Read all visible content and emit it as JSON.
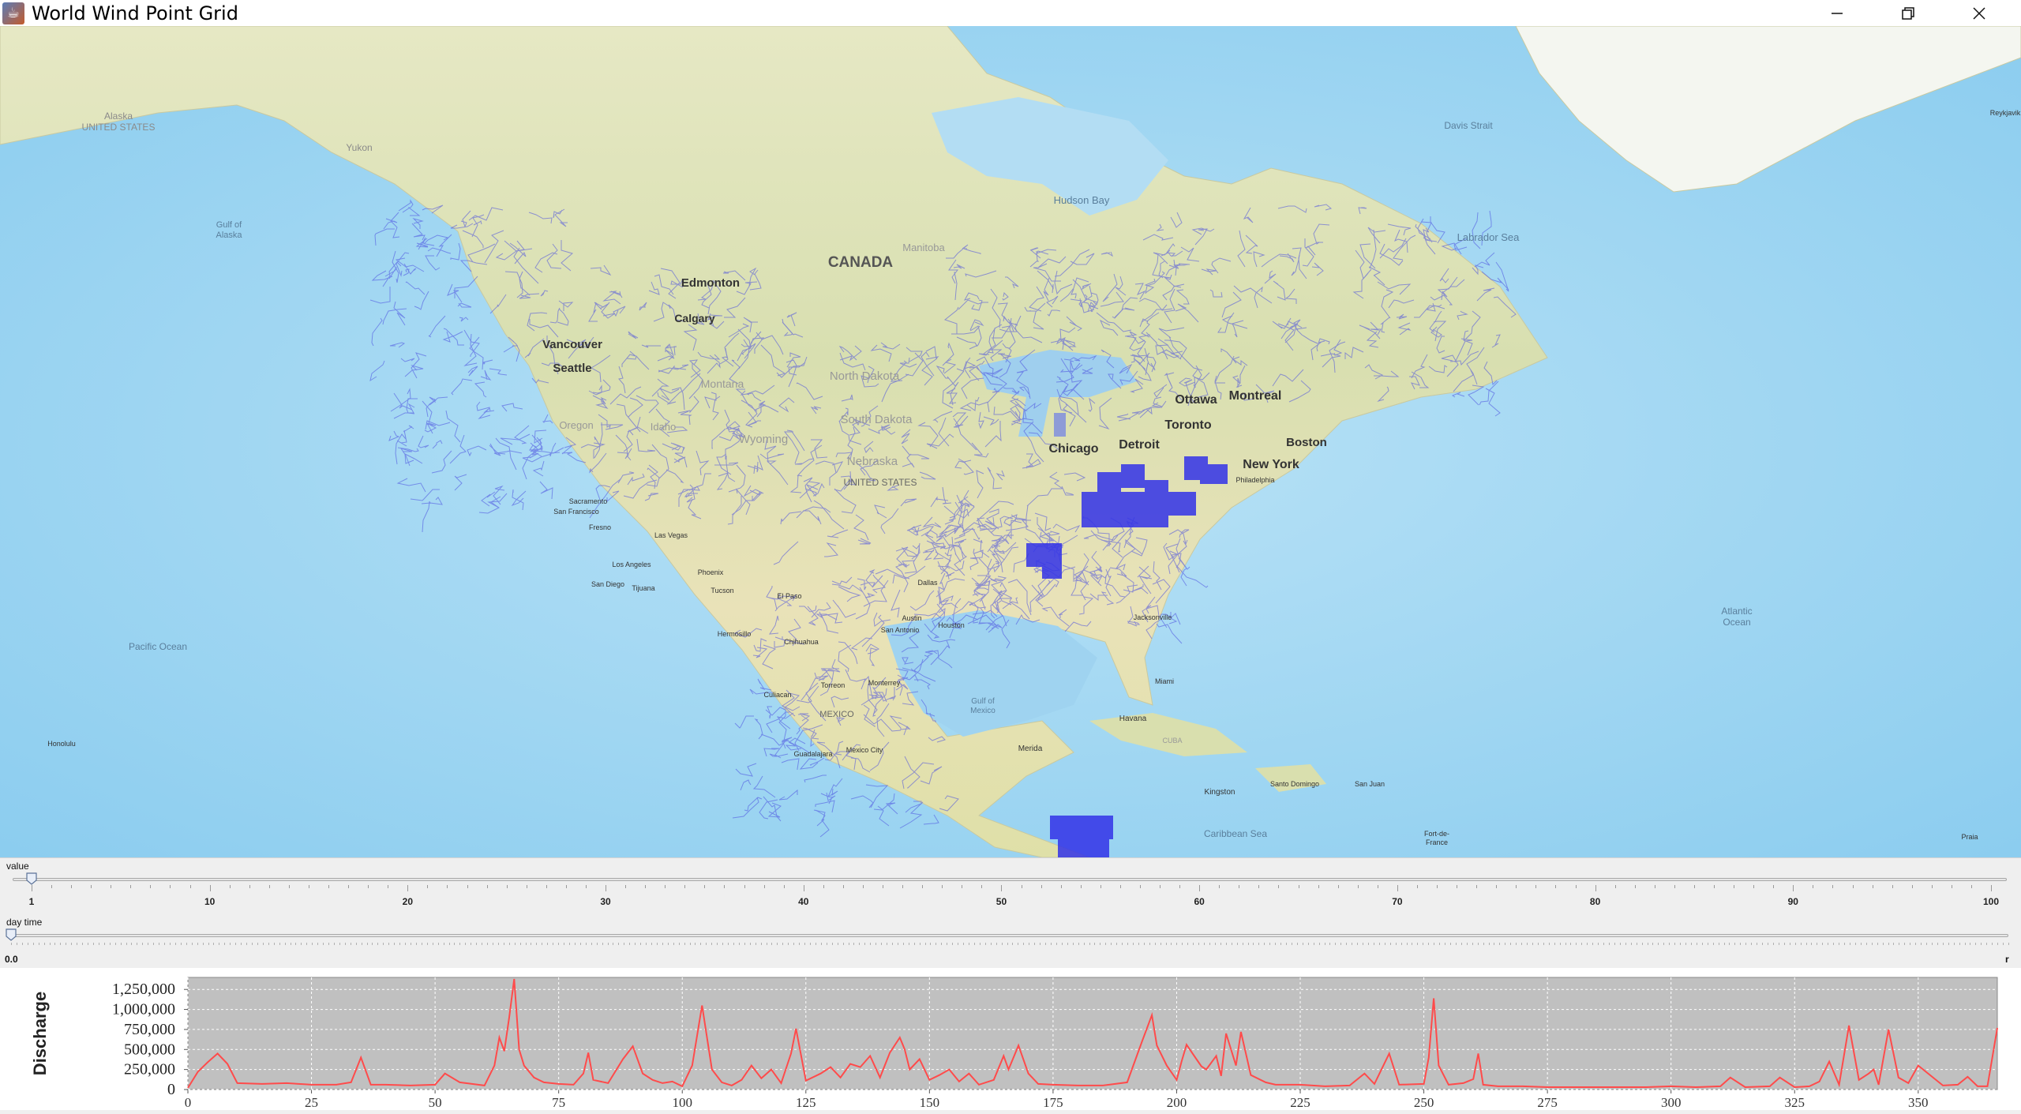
{
  "window": {
    "title": "World Wind Point Grid",
    "app_icon": "java-cup-icon",
    "buttons": [
      "minimize-icon",
      "restore-icon",
      "close-icon"
    ]
  },
  "map": {
    "labels": [
      {
        "id": "alaska",
        "text": "Alaska\nUNITED STATES"
      },
      {
        "id": "yukon",
        "text": "Yukon"
      },
      {
        "id": "gulf_alaska",
        "text": "Gulf of\nAlaska"
      },
      {
        "id": "hudson",
        "text": "Hudson Bay"
      },
      {
        "id": "davis",
        "text": "Davis Strait"
      },
      {
        "id": "labrador",
        "text": "Labrador Sea"
      },
      {
        "id": "canada",
        "text": "CANADA"
      },
      {
        "id": "manitoba",
        "text": "Manitoba"
      },
      {
        "id": "edmonton",
        "text": "Edmonton"
      },
      {
        "id": "calgary",
        "text": "Calgary"
      },
      {
        "id": "vancouver",
        "text": "Vancouver"
      },
      {
        "id": "seattle",
        "text": "Seattle"
      },
      {
        "id": "montana",
        "text": "Montana"
      },
      {
        "id": "ndakota",
        "text": "North Dakota"
      },
      {
        "id": "sdakota",
        "text": "South Dakota"
      },
      {
        "id": "oregon",
        "text": "Oregon"
      },
      {
        "id": "idaho",
        "text": "Idaho"
      },
      {
        "id": "wyoming",
        "text": "Wyoming"
      },
      {
        "id": "nebraska",
        "text": "Nebraska"
      },
      {
        "id": "us",
        "text": "UNITED STATES"
      },
      {
        "id": "ottawa",
        "text": "Ottawa"
      },
      {
        "id": "montreal",
        "text": "Montreal"
      },
      {
        "id": "toronto",
        "text": "Toronto"
      },
      {
        "id": "boston",
        "text": "Boston"
      },
      {
        "id": "chicago",
        "text": "Chicago"
      },
      {
        "id": "detroit",
        "text": "Detroit"
      },
      {
        "id": "newyork",
        "text": "New York"
      },
      {
        "id": "philadelphia",
        "text": "Philadelphia"
      },
      {
        "id": "sacramento",
        "text": "Sacramento"
      },
      {
        "id": "sanfrancisco",
        "text": "San Francisco"
      },
      {
        "id": "fresno",
        "text": "Fresno"
      },
      {
        "id": "lasvegas",
        "text": "Las Vegas"
      },
      {
        "id": "losangeles",
        "text": "Los Angeles"
      },
      {
        "id": "sandiego",
        "text": "San Diego"
      },
      {
        "id": "tijuana",
        "text": "Tijuana"
      },
      {
        "id": "phoenix",
        "text": "Phoenix"
      },
      {
        "id": "tucson",
        "text": "Tucson"
      },
      {
        "id": "elpaso",
        "text": "El Paso"
      },
      {
        "id": "dallas",
        "text": "Dallas"
      },
      {
        "id": "austin",
        "text": "Austin"
      },
      {
        "id": "sanantonio",
        "text": "San Antonio"
      },
      {
        "id": "houston",
        "text": "Houston"
      },
      {
        "id": "jacksonville",
        "text": "Jacksonville"
      },
      {
        "id": "miami",
        "text": "Miami"
      },
      {
        "id": "hermosillo",
        "text": "Hermosillo"
      },
      {
        "id": "chihuahua",
        "text": "Chihuahua"
      },
      {
        "id": "culiacan",
        "text": "Culiacan"
      },
      {
        "id": "torreon",
        "text": "Torreon"
      },
      {
        "id": "monterrey",
        "text": "Monterrey"
      },
      {
        "id": "mexico",
        "text": "MEXICO"
      },
      {
        "id": "mexicocity",
        "text": "Mexico City"
      },
      {
        "id": "guadalajara",
        "text": "Guadalajara"
      },
      {
        "id": "gulfmexico",
        "text": "Gulf of\nMexico"
      },
      {
        "id": "merida",
        "text": "Merida"
      },
      {
        "id": "havana",
        "text": "Havana"
      },
      {
        "id": "cuba",
        "text": "CUBA"
      },
      {
        "id": "kingston",
        "text": "Kingston"
      },
      {
        "id": "santodomingo",
        "text": "Santo Domingo"
      },
      {
        "id": "sanjuan",
        "text": "San Juan"
      },
      {
        "id": "caribbean",
        "text": "Caribbean Sea"
      },
      {
        "id": "pacific",
        "text": "Pacific Ocean"
      },
      {
        "id": "atlantic",
        "text": "Atlantic\nOcean"
      },
      {
        "id": "honolulu",
        "text": "Honolulu"
      },
      {
        "id": "praia",
        "text": "Praia"
      },
      {
        "id": "fortdefrance",
        "text": "Fort-de-\nFrance"
      },
      {
        "id": "reykjavik",
        "text": "Reykjavik"
      }
    ]
  },
  "value_slider": {
    "label": "value",
    "current": 1,
    "min": 1,
    "max": 100,
    "tick_labels": [
      "1",
      "10",
      "20",
      "30",
      "40",
      "50",
      "60",
      "70",
      "80",
      "90",
      "100"
    ]
  },
  "daytime_slider": {
    "label": "day time",
    "current": 0,
    "start_label": "0.0",
    "end_label": "r"
  },
  "chart_data": {
    "type": "line",
    "ylabel": "Discharge",
    "xlim": [
      0,
      366
    ],
    "ylim": [
      0,
      1400000
    ],
    "xticks": [
      0,
      25,
      50,
      75,
      100,
      125,
      150,
      175,
      200,
      225,
      250,
      275,
      300,
      325,
      350
    ],
    "yticks": [
      0,
      250000,
      500000,
      750000,
      1000000,
      1250000
    ],
    "ytick_labels": [
      "0",
      "250,000",
      "500,000",
      "750,000",
      "1,000,000",
      "1,250,000"
    ],
    "series_color": "#ff4b4b",
    "series": [
      {
        "x": [
          0,
          2,
          4,
          6,
          8,
          10,
          15,
          20,
          25,
          30,
          33,
          35,
          37,
          40,
          45,
          50,
          52,
          55,
          60,
          62,
          63,
          64,
          65,
          66,
          67,
          68,
          70,
          72,
          75,
          78,
          80,
          81,
          82,
          85,
          88,
          90,
          92,
          94,
          96,
          98,
          100,
          102,
          104,
          106,
          108,
          110,
          112,
          114,
          116,
          118,
          120,
          122,
          123,
          125,
          128,
          130,
          132,
          134,
          136,
          138,
          140,
          142,
          144,
          145,
          146,
          148,
          150,
          152,
          154,
          156,
          158,
          160,
          163,
          165,
          166,
          168,
          170,
          172,
          175,
          180,
          185,
          190,
          193,
          195,
          196,
          198,
          200,
          201,
          202,
          204,
          205,
          206,
          208,
          209,
          210,
          212,
          213,
          215,
          218,
          220,
          225,
          230,
          235,
          238,
          240,
          243,
          245,
          250,
          251,
          252,
          253,
          255,
          258,
          260,
          261,
          262,
          265,
          270,
          275,
          280,
          285,
          290,
          295,
          300,
          305,
          310,
          312,
          315,
          320,
          322,
          325,
          328,
          330,
          332,
          334,
          336,
          338,
          340,
          341,
          342,
          344,
          346,
          348,
          350,
          355,
          358,
          360,
          362,
          364,
          366
        ],
        "y": [
          20000,
          220000,
          340000,
          450000,
          320000,
          80000,
          70000,
          80000,
          60000,
          60000,
          90000,
          400000,
          60000,
          60000,
          50000,
          60000,
          200000,
          90000,
          50000,
          300000,
          650000,
          480000,
          900000,
          1380000,
          500000,
          300000,
          150000,
          90000,
          70000,
          60000,
          200000,
          460000,
          120000,
          80000,
          380000,
          540000,
          200000,
          120000,
          80000,
          100000,
          40000,
          300000,
          1050000,
          250000,
          90000,
          50000,
          120000,
          300000,
          140000,
          250000,
          80000,
          450000,
          760000,
          110000,
          200000,
          280000,
          150000,
          320000,
          280000,
          420000,
          150000,
          460000,
          650000,
          500000,
          250000,
          380000,
          120000,
          180000,
          250000,
          100000,
          200000,
          60000,
          120000,
          420000,
          250000,
          550000,
          200000,
          70000,
          60000,
          50000,
          50000,
          90000,
          600000,
          930000,
          550000,
          300000,
          120000,
          350000,
          560000,
          380000,
          290000,
          250000,
          420000,
          170000,
          700000,
          300000,
          720000,
          180000,
          90000,
          60000,
          60000,
          40000,
          50000,
          200000,
          70000,
          450000,
          60000,
          70000,
          400000,
          1140000,
          300000,
          60000,
          80000,
          130000,
          450000,
          60000,
          40000,
          40000,
          30000,
          30000,
          30000,
          30000,
          30000,
          40000,
          30000,
          40000,
          150000,
          30000,
          40000,
          150000,
          30000,
          40000,
          100000,
          350000,
          60000,
          800000,
          120000,
          200000,
          250000,
          60000,
          750000,
          150000,
          80000,
          300000,
          50000,
          60000,
          160000,
          40000,
          40000,
          770000
        ]
      }
    ]
  }
}
